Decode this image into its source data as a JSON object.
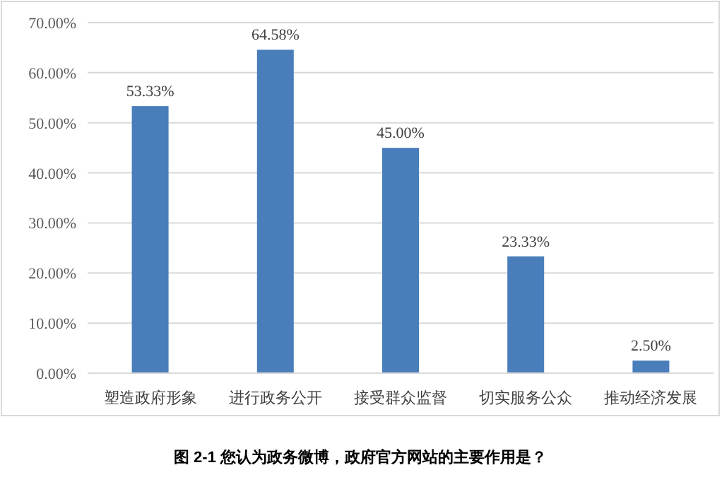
{
  "chart_data": {
    "type": "bar",
    "categories": [
      "塑造政府形象",
      "进行政务公开",
      "接受群众监督",
      "切实服务公众",
      "推动经济发展"
    ],
    "values": [
      53.33,
      64.58,
      45.0,
      23.33,
      2.5
    ],
    "value_labels": [
      "53.33%",
      "64.58%",
      "45.00%",
      "23.33%",
      "2.50%"
    ],
    "color": "#4a7ebb",
    "ylim": [
      0,
      70
    ],
    "yticks": [
      {
        "value": 0,
        "label": "0.00%"
      },
      {
        "value": 10,
        "label": "10.00%"
      },
      {
        "value": 20,
        "label": "20.00%"
      },
      {
        "value": 30,
        "label": "30.00%"
      },
      {
        "value": 40,
        "label": "40.00%"
      },
      {
        "value": 50,
        "label": "50.00%"
      },
      {
        "value": 60,
        "label": "60.00%"
      },
      {
        "value": 70,
        "label": "70.00%"
      }
    ],
    "grid": "y",
    "annotations": [
      "图 2-1 您认为政务微博，政府官方网站的主要作用是？"
    ]
  }
}
